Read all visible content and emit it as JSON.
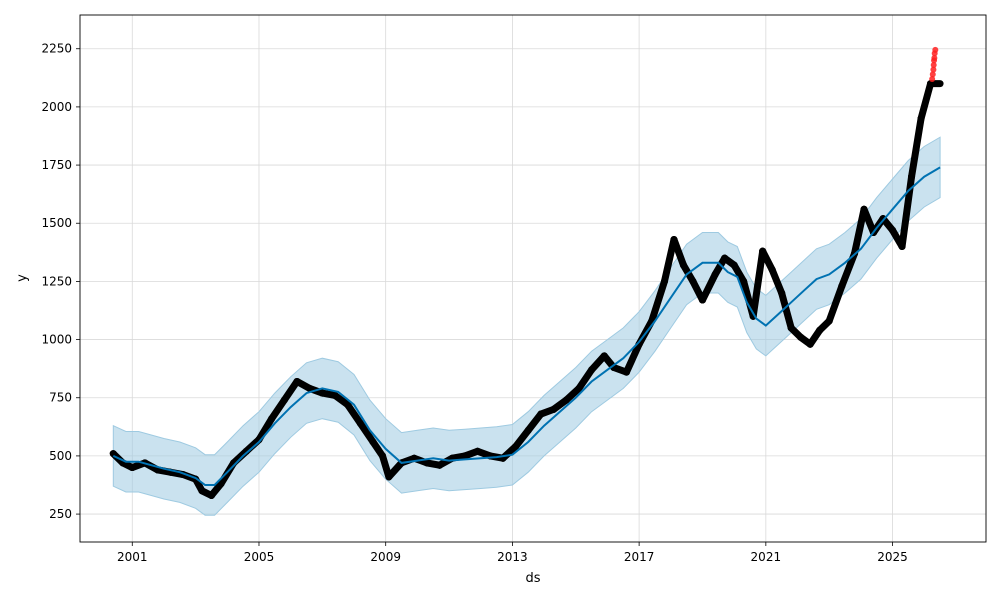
{
  "chart_data": {
    "type": "scatter",
    "title": "",
    "xlabel": "ds",
    "ylabel": "y",
    "grid": true,
    "xlim": [
      1999.35,
      2027.95
    ],
    "ylim": [
      130,
      2395
    ],
    "x_ticks": [
      2001,
      2005,
      2009,
      2013,
      2017,
      2021,
      2025
    ],
    "x_tick_labels": [
      "2001",
      "2005",
      "2009",
      "2013",
      "2017",
      "2021",
      "2025"
    ],
    "y_ticks": [
      250,
      500,
      750,
      1000,
      1250,
      1500,
      1750,
      2000,
      2250
    ],
    "y_tick_labels": [
      "250",
      "500",
      "750",
      "1000",
      "1250",
      "1500",
      "1750",
      "2000",
      "2250"
    ],
    "colors": {
      "observed": "#000000",
      "forecast_line": "#0072B2",
      "uncertainty_band": "#9ecae1",
      "recent_points": "#ff2020"
    },
    "series": [
      {
        "kind": "observed",
        "x": [
          2000.4,
          2000.7,
          2001.0,
          2001.4,
          2001.8,
          2002.2,
          2002.6,
          2003.0,
          2003.2,
          2003.5,
          2003.8,
          2004.2,
          2004.6,
          2005.0,
          2005.4,
          2005.8,
          2006.2,
          2006.6,
          2007.0,
          2007.4,
          2007.8,
          2008.2,
          2008.6,
          2008.9,
          2009.1,
          2009.5,
          2009.9,
          2010.3,
          2010.7,
          2011.1,
          2011.5,
          2011.9,
          2012.3,
          2012.7,
          2013.1,
          2013.5,
          2013.9,
          2014.3,
          2014.7,
          2015.1,
          2015.5,
          2015.9,
          2016.2,
          2016.6,
          2017.0,
          2017.4,
          2017.8,
          2018.1,
          2018.4,
          2018.7,
          2019.0,
          2019.4,
          2019.7,
          2020.0,
          2020.3,
          2020.6,
          2020.9,
          2021.2,
          2021.5,
          2021.8,
          2022.1,
          2022.4,
          2022.7,
          2023.0,
          2023.4,
          2023.8,
          2024.1,
          2024.4,
          2024.7,
          2025.0,
          2025.3,
          2025.6,
          2025.9,
          2026.2
        ],
        "y": [
          510,
          470,
          450,
          470,
          440,
          430,
          420,
          400,
          350,
          330,
          380,
          470,
          520,
          570,
          660,
          740,
          820,
          790,
          770,
          760,
          720,
          640,
          560,
          500,
          410,
          470,
          490,
          470,
          460,
          490,
          500,
          520,
          500,
          490,
          540,
          610,
          680,
          700,
          740,
          790,
          870,
          930,
          880,
          860,
          980,
          1080,
          1250,
          1430,
          1320,
          1250,
          1170,
          1280,
          1350,
          1320,
          1250,
          1100,
          1380,
          1300,
          1200,
          1050,
          1010,
          980,
          1040,
          1080,
          1230,
          1370,
          1560,
          1460,
          1520,
          1470,
          1400,
          1700,
          1950,
          2100
        ]
      },
      {
        "kind": "recent",
        "x": [
          2026.25,
          2026.27,
          2026.29,
          2026.3,
          2026.31,
          2026.32,
          2026.33,
          2026.35
        ],
        "y": [
          2120,
          2140,
          2160,
          2180,
          2200,
          2210,
          2230,
          2245
        ]
      },
      {
        "kind": "forecast",
        "x": [
          2000.4,
          2000.8,
          2001.2,
          2001.6,
          2002.0,
          2002.5,
          2003.0,
          2003.3,
          2003.6,
          2004.0,
          2004.5,
          2005.0,
          2005.5,
          2006.0,
          2006.5,
          2007.0,
          2007.5,
          2008.0,
          2008.5,
          2009.0,
          2009.5,
          2010.0,
          2010.5,
          2011.0,
          2011.5,
          2012.0,
          2012.5,
          2013.0,
          2013.5,
          2014.0,
          2014.5,
          2015.0,
          2015.5,
          2016.0,
          2016.5,
          2017.0,
          2017.5,
          2018.0,
          2018.5,
          2019.0,
          2019.5,
          2019.8,
          2020.1,
          2020.4,
          2020.7,
          2021.0,
          2021.4,
          2021.8,
          2022.2,
          2022.6,
          2023.0,
          2023.5,
          2024.0,
          2024.5,
          2025.0,
          2025.5,
          2026.0,
          2026.5
        ],
        "y": [
          500,
          475,
          475,
          460,
          445,
          430,
          405,
          375,
          375,
          430,
          500,
          560,
          640,
          710,
          770,
          790,
          775,
          720,
          610,
          530,
          470,
          480,
          490,
          480,
          485,
          490,
          495,
          505,
          560,
          630,
          690,
          750,
          820,
          870,
          920,
          990,
          1080,
          1180,
          1280,
          1330,
          1330,
          1290,
          1270,
          1160,
          1090,
          1060,
          1110,
          1160,
          1210,
          1260,
          1280,
          1330,
          1390,
          1480,
          1560,
          1640,
          1700,
          1740
        ]
      },
      {
        "kind": "band_upper",
        "x": [
          2000.4,
          2000.8,
          2001.2,
          2001.6,
          2002.0,
          2002.5,
          2003.0,
          2003.3,
          2003.6,
          2004.0,
          2004.5,
          2005.0,
          2005.5,
          2006.0,
          2006.5,
          2007.0,
          2007.5,
          2008.0,
          2008.5,
          2009.0,
          2009.5,
          2010.0,
          2010.5,
          2011.0,
          2011.5,
          2012.0,
          2012.5,
          2013.0,
          2013.5,
          2014.0,
          2014.5,
          2015.0,
          2015.5,
          2016.0,
          2016.5,
          2017.0,
          2017.5,
          2018.0,
          2018.5,
          2019.0,
          2019.5,
          2019.8,
          2020.1,
          2020.4,
          2020.7,
          2021.0,
          2021.4,
          2021.8,
          2022.2,
          2022.6,
          2023.0,
          2023.5,
          2024.0,
          2024.5,
          2025.0,
          2025.5,
          2026.0,
          2026.5
        ],
        "y": [
          630,
          605,
          605,
          590,
          575,
          560,
          535,
          505,
          505,
          560,
          630,
          690,
          770,
          840,
          900,
          920,
          905,
          850,
          740,
          660,
          600,
          610,
          620,
          610,
          615,
          620,
          625,
          635,
          690,
          760,
          820,
          880,
          950,
          1000,
          1050,
          1120,
          1210,
          1310,
          1410,
          1460,
          1460,
          1420,
          1400,
          1290,
          1220,
          1190,
          1240,
          1290,
          1340,
          1390,
          1410,
          1460,
          1520,
          1610,
          1690,
          1770,
          1830,
          1870
        ]
      },
      {
        "kind": "band_lower",
        "x": [
          2000.4,
          2000.8,
          2001.2,
          2001.6,
          2002.0,
          2002.5,
          2003.0,
          2003.3,
          2003.6,
          2004.0,
          2004.5,
          2005.0,
          2005.5,
          2006.0,
          2006.5,
          2007.0,
          2007.5,
          2008.0,
          2008.5,
          2009.0,
          2009.5,
          2010.0,
          2010.5,
          2011.0,
          2011.5,
          2012.0,
          2012.5,
          2013.0,
          2013.5,
          2014.0,
          2014.5,
          2015.0,
          2015.5,
          2016.0,
          2016.5,
          2017.0,
          2017.5,
          2018.0,
          2018.5,
          2019.0,
          2019.5,
          2019.8,
          2020.1,
          2020.4,
          2020.7,
          2021.0,
          2021.4,
          2021.8,
          2022.2,
          2022.6,
          2023.0,
          2023.5,
          2024.0,
          2024.5,
          2025.0,
          2025.5,
          2026.0,
          2026.5
        ],
        "y": [
          370,
          345,
          345,
          330,
          315,
          300,
          275,
          245,
          245,
          300,
          370,
          430,
          510,
          580,
          640,
          660,
          645,
          590,
          480,
          400,
          340,
          350,
          360,
          350,
          355,
          360,
          365,
          375,
          430,
          500,
          560,
          620,
          690,
          740,
          790,
          860,
          950,
          1050,
          1150,
          1200,
          1200,
          1160,
          1140,
          1030,
          960,
          930,
          980,
          1030,
          1080,
          1130,
          1150,
          1200,
          1260,
          1350,
          1430,
          1510,
          1570,
          1610
        ]
      }
    ]
  }
}
